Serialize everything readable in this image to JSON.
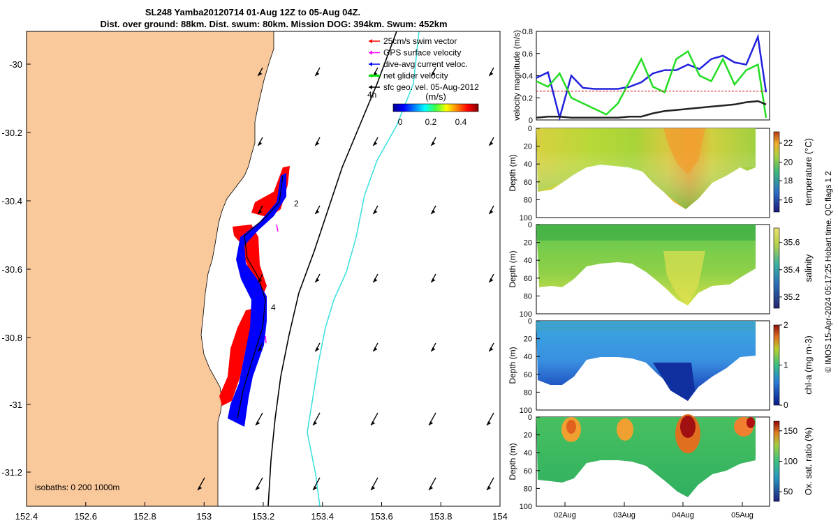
{
  "header": {
    "line1": "SL248 Yamba20120714 01-Aug 12Z to 05-Aug 04Z.",
    "line2": "Dist. over ground: 88km. Dist. swum: 80km. Mission DOG: 394km. Swum: 452km"
  },
  "side_note": "© IMOS 15-Apr-2024 05:17:25 Hobart time. QC flags 1  2",
  "map": {
    "x_ticks": [
      "152.4",
      "152.6",
      "152.8",
      "153",
      "153.2",
      "153.4",
      "153.6",
      "153.8",
      "154"
    ],
    "y_ticks": [
      "-30",
      "-30.2",
      "-30.4",
      "-30.6",
      "-30.8",
      "-31",
      "-31.2"
    ],
    "isobaths_label": "isobaths: 0   200   1000m",
    "track_labels": [
      "2",
      "4",
      "4h"
    ],
    "legend": [
      {
        "label": "25cm/s swim vector",
        "color": "#ff0000"
      },
      {
        "label": "GPS surface velocity",
        "color": "#ff00ff"
      },
      {
        "label": "dive-avg current veloc.",
        "color": "#0000ff"
      },
      {
        "label": "net glider velocity",
        "color": "#00dd00"
      },
      {
        "label": "sfc geo. vel. 05-Aug-2012",
        "color": "#000000"
      }
    ],
    "colorbar": {
      "title": "(m/s)",
      "ticks": [
        "0",
        "0.2",
        "0.4"
      ]
    },
    "colors": {
      "land": "#f9c89b",
      "isobath_200": "#000000",
      "isobath_1000": "#40e0e0",
      "swim": "#ff0000",
      "current": "#0000ff"
    }
  },
  "velocity_panel": {
    "ylabel": "velocity magnitude (m/s)",
    "y_ticks": [
      "0",
      "0.2",
      "0.4",
      "0.6",
      "0.8"
    ]
  },
  "sections": [
    {
      "name": "temperature",
      "label": "temperature (°C)",
      "cb_ticks": [
        "16",
        "18",
        "20",
        "22"
      ]
    },
    {
      "name": "salinity",
      "label": "salinity",
      "cb_ticks": [
        "35.2",
        "35.4",
        "35.6"
      ]
    },
    {
      "name": "chla",
      "label": "chl-a (mg m-3)",
      "cb_ticks": [
        "0",
        "1",
        "2"
      ]
    },
    {
      "name": "oxygen",
      "label": "Ox. sat. ratio (%)",
      "cb_ticks": [
        "50",
        "100",
        "150"
      ]
    }
  ],
  "depth_axis": {
    "ylabel": "Depth (m)",
    "ticks": [
      "0",
      "20",
      "40",
      "60",
      "80",
      "100"
    ]
  },
  "time_axis": {
    "ticks": [
      "02Aug",
      "03Aug",
      "04Aug",
      "05Aug"
    ]
  },
  "chart_data": [
    {
      "type": "line",
      "title": "",
      "ylabel": "velocity magnitude (m/s)",
      "x": [
        0,
        0.05,
        0.1,
        0.15,
        0.2,
        0.25,
        0.3,
        0.35,
        0.4,
        0.45,
        0.5,
        0.55,
        0.6,
        0.65,
        0.7,
        0.75,
        0.8,
        0.85,
        0.9,
        0.95,
        0.985
      ],
      "ylim": [
        0,
        0.8
      ],
      "series": [
        {
          "color": "#2222dd",
          "values": [
            0.38,
            0.43,
            0.02,
            0.4,
            0.29,
            0.28,
            0.28,
            0.28,
            0.3,
            0.34,
            0.42,
            0.45,
            0.45,
            0.5,
            0.46,
            0.55,
            0.58,
            0.52,
            0.5,
            0.75,
            0.25
          ]
        },
        {
          "color": "#22dd22",
          "values": [
            0.35,
            0.3,
            0.42,
            0.2,
            0.15,
            0.1,
            0.05,
            0.15,
            0.35,
            0.55,
            0.3,
            0.25,
            0.55,
            0.62,
            0.4,
            0.35,
            0.55,
            0.32,
            0.45,
            0.5,
            0.02
          ]
        },
        {
          "color": "#dd2222",
          "values": [
            0.26,
            0.26,
            0.26,
            0.26,
            0.26,
            0.26,
            0.26,
            0.26,
            0.26,
            0.26,
            0.26,
            0.26,
            0.26,
            0.26,
            0.26,
            0.26,
            0.26,
            0.26,
            0.26,
            0.26,
            0.26
          ]
        },
        {
          "color": "#222222",
          "values": [
            0.02,
            0.03,
            0.03,
            0.02,
            0.02,
            0.02,
            0.02,
            0.02,
            0.03,
            0.03,
            0.06,
            0.08,
            0.09,
            0.1,
            0.11,
            0.12,
            0.13,
            0.14,
            0.16,
            0.17,
            0.14
          ]
        }
      ]
    },
    {
      "type": "heatmap",
      "ylabel": "Depth (m)",
      "series": [
        {
          "name": "temperature",
          "values": []
        }
      ],
      "ylim": [
        100,
        0
      ],
      "bottom_depth": [
        70,
        72,
        73,
        68,
        65,
        60,
        45,
        40,
        42,
        45,
        40,
        38,
        45,
        65,
        80,
        88,
        85,
        72,
        60,
        55,
        40,
        30
      ]
    }
  ]
}
